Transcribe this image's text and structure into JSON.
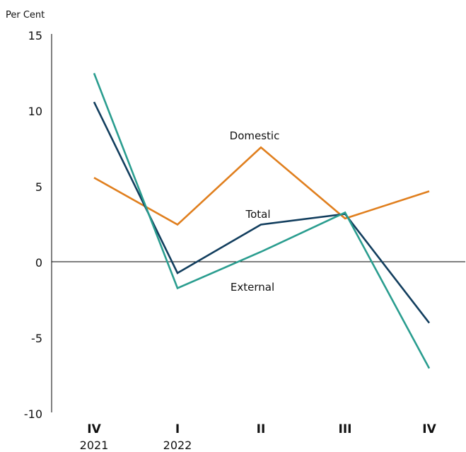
{
  "chart_data": {
    "type": "line",
    "unit_label": "Per Cent",
    "ylim": [
      -10,
      15
    ],
    "yticks": [
      -10,
      -5,
      0,
      5,
      10,
      15
    ],
    "ytick_labels": [
      "-10",
      "-5",
      "0",
      "5",
      "10",
      "15"
    ],
    "categories": [
      "IV",
      "I",
      "II",
      "III",
      "IV"
    ],
    "category_years": [
      "2021",
      "2022",
      "",
      "",
      ""
    ],
    "grid": false,
    "zero_line": true,
    "series": [
      {
        "name": "Domestic",
        "color": "#E07F1E",
        "values": [
          5.6,
          2.5,
          7.6,
          2.9,
          4.7
        ]
      },
      {
        "name": "Total",
        "color": "#123E5E",
        "values": [
          10.6,
          -0.7,
          2.5,
          3.2,
          -4.0
        ]
      },
      {
        "name": "External",
        "color": "#2A9D8F",
        "values": [
          12.5,
          -1.7,
          0.7,
          3.3,
          -7.0
        ]
      }
    ]
  }
}
